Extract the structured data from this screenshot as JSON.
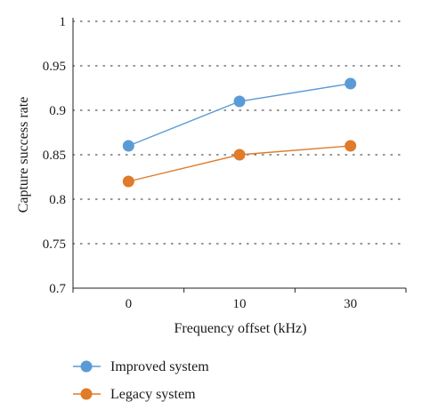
{
  "chart_data": {
    "type": "line",
    "categories": [
      "0",
      "10",
      "30"
    ],
    "xlabel": "Frequency offset (kHz)",
    "ylabel": "Capture success rate",
    "ylim": [
      0.7,
      1.0
    ],
    "yticks": [
      0.7,
      0.75,
      0.8,
      0.85,
      0.9,
      0.95,
      1
    ],
    "ytick_labels": [
      "0.7",
      "0.75",
      "0.8",
      "0.85",
      "0.9",
      "0.95",
      "1"
    ],
    "grid": "horizontal-dotted",
    "legend_position": "bottom-left",
    "series": [
      {
        "name": "Improved system",
        "values": [
          0.86,
          0.91,
          0.93
        ],
        "color": "#5b9bd5"
      },
      {
        "name": "Legacy system",
        "values": [
          0.82,
          0.85,
          0.86
        ],
        "color": "#e07b2a"
      }
    ]
  }
}
